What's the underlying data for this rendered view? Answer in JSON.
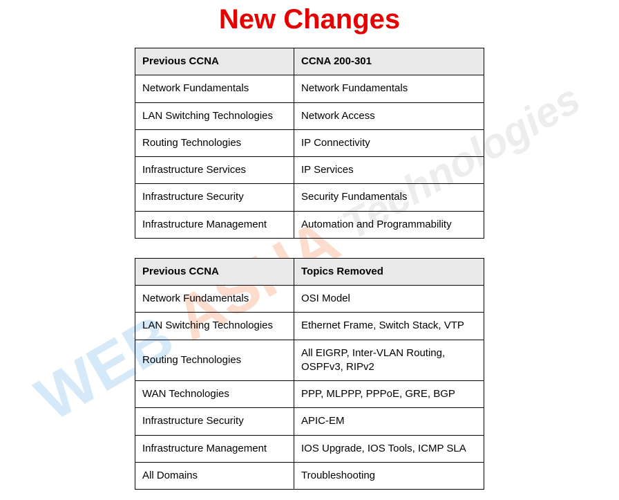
{
  "title": {
    "text": "New Changes",
    "color": "#e60000"
  },
  "watermark": {
    "web": "WEB",
    "asha": "ASHA",
    "tech": "Technologies"
  },
  "table1": {
    "headers": [
      "Previous CCNA",
      "CCNA 200-301"
    ],
    "rows": [
      [
        "Network Fundamentals",
        "Network Fundamentals"
      ],
      [
        "LAN Switching Technologies",
        "Network Access"
      ],
      [
        "Routing Technologies",
        "IP Connectivity"
      ],
      [
        "Infrastructure Services",
        "IP Services"
      ],
      [
        "Infrastructure Security",
        "Security Fundamentals"
      ],
      [
        "Infrastructure Management",
        "Automation and Programmability"
      ]
    ]
  },
  "table2": {
    "headers": [
      "Previous CCNA",
      "Topics Removed"
    ],
    "rows": [
      [
        "Network Fundamentals",
        "OSI Model"
      ],
      [
        "LAN Switching Technologies",
        "Ethernet Frame, Switch Stack, VTP"
      ],
      [
        "Routing Technologies",
        "All EIGRP, Inter-VLAN Routing, OSPFv3, RIPv2"
      ],
      [
        "WAN Technologies",
        "PPP, MLPPP, PPPoE, GRE, BGP"
      ],
      [
        "Infrastructure Security",
        "APIC-EM"
      ],
      [
        "Infrastructure Management",
        "IOS Upgrade, IOS Tools, ICMP SLA"
      ],
      [
        "All Domains",
        "Troubleshooting"
      ]
    ]
  }
}
